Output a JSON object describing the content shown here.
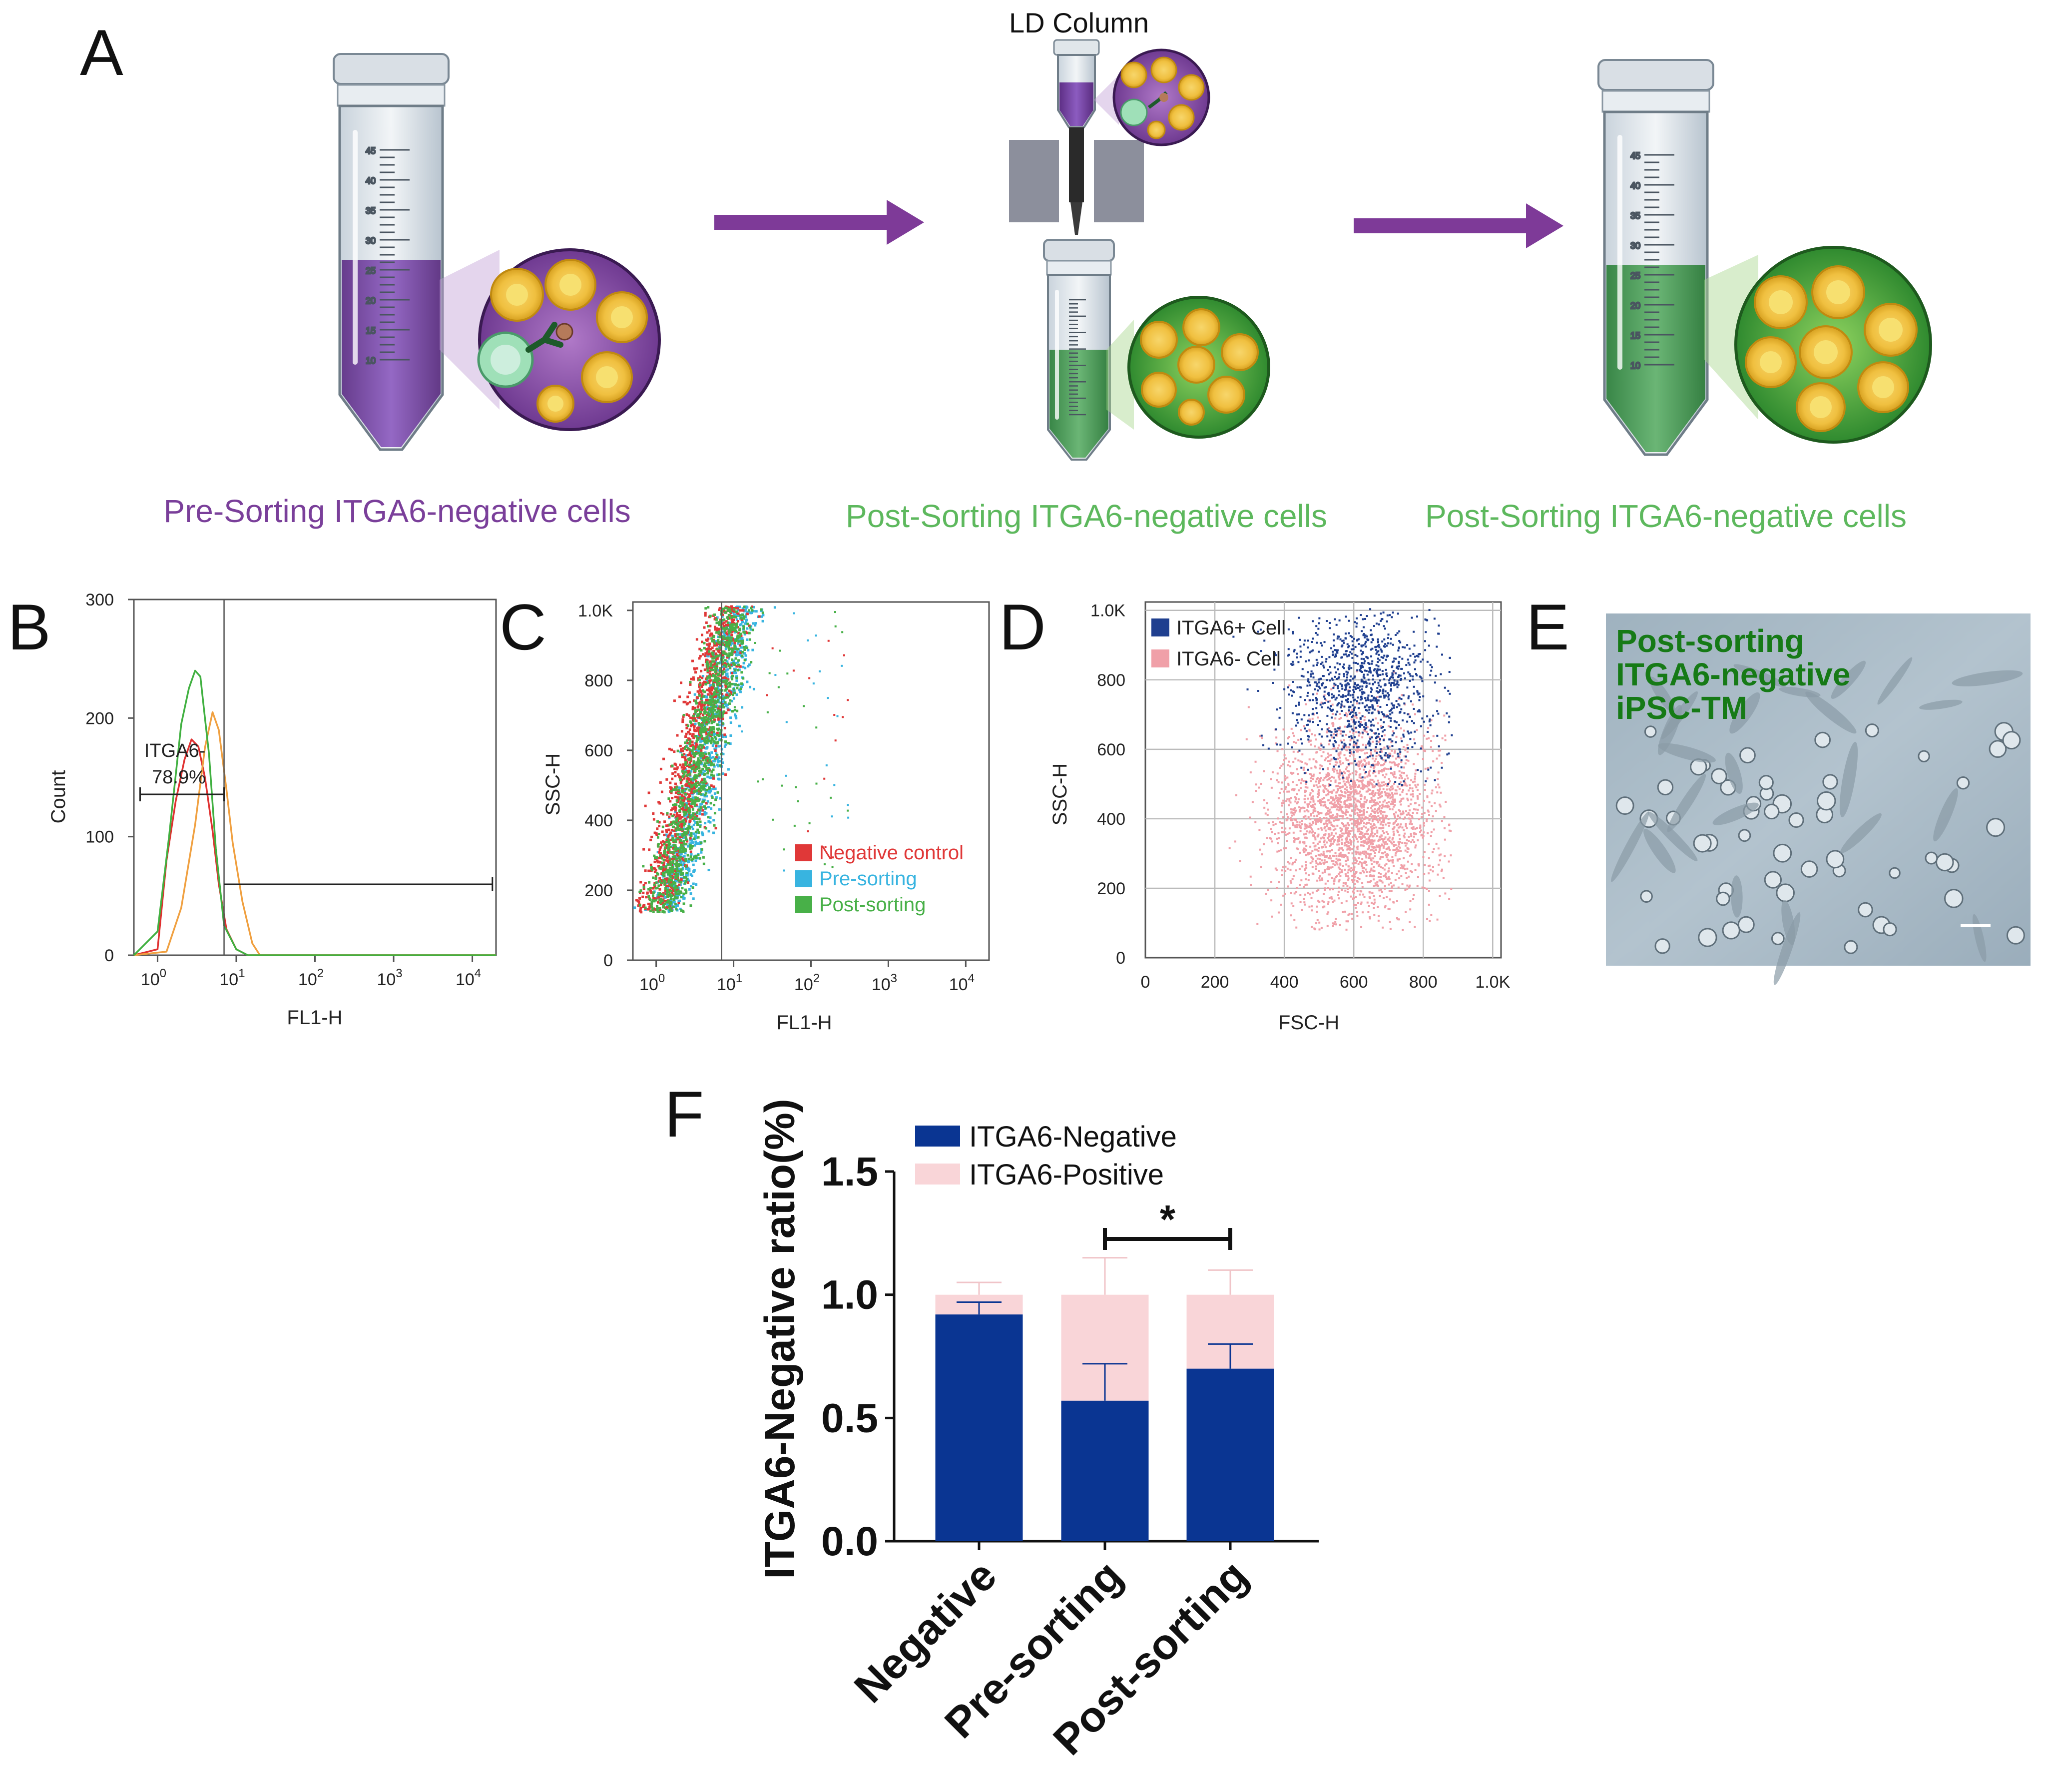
{
  "panels": {
    "a": {
      "letter": "A",
      "column_label": "LD Column",
      "captions": [
        "Pre-Sorting ITGA6-negative cells",
        "Post-Sorting ITGA6-negative cells",
        "Post-Sorting ITGA6-negative cells"
      ],
      "tube_marks": [
        "45",
        "40",
        "35",
        "30",
        "25",
        "20",
        "15",
        "10"
      ],
      "colors": {
        "pre": "#7a3f9a",
        "post": "#5db85d",
        "arrow": "#7e3a98"
      }
    },
    "b": {
      "letter": "B"
    },
    "c": {
      "letter": "C"
    },
    "d": {
      "letter": "D"
    },
    "e": {
      "letter": "E",
      "overlay_lines": [
        "Post-sorting",
        "ITGA6-negative",
        "iPSC-TM"
      ]
    },
    "f": {
      "letter": "F"
    }
  },
  "chart_data": [
    {
      "id": "B",
      "type": "line",
      "xlabel": "FL1-H",
      "ylabel": "Count",
      "xscale": "log",
      "xlim": [
        0.5,
        20000
      ],
      "ylim": [
        0,
        300
      ],
      "yticks": [
        "0",
        "100",
        "200",
        "300"
      ],
      "xticks": [
        {
          "base": "10",
          "exp": "0",
          "value": 1
        },
        {
          "base": "10",
          "exp": "1",
          "value": 10
        },
        {
          "base": "10",
          "exp": "2",
          "value": 100
        },
        {
          "base": "10",
          "exp": "3",
          "value": 1000
        },
        {
          "base": "10",
          "exp": "4",
          "value": 10000
        }
      ],
      "gate_label": "ITGA6-",
      "gate_value": "78.9%",
      "gate_range": [
        0.6,
        7
      ],
      "positive_gate_range": [
        7,
        18000
      ],
      "gate_line_x": 7,
      "series": [
        {
          "name": "Negative control",
          "color": "#e03030",
          "x": [
            0.5,
            1.0,
            1.3,
            1.7,
            2.2,
            2.7,
            3.3,
            4.0,
            5.0,
            6.0,
            7.5,
            10,
            14,
            20000
          ],
          "y": [
            0,
            5,
            80,
            130,
            165,
            182,
            176,
            150,
            105,
            60,
            22,
            5,
            0,
            0
          ]
        },
        {
          "name": "Pre-sorting",
          "color": "#f0a040",
          "x": [
            0.5,
            1.3,
            2.0,
            3.0,
            4.0,
            5.0,
            6.0,
            7.5,
            9,
            12,
            16,
            20,
            20000
          ],
          "y": [
            0,
            3,
            40,
            110,
            175,
            205,
            190,
            140,
            95,
            45,
            10,
            0,
            0
          ]
        },
        {
          "name": "Post-sorting",
          "color": "#40b040",
          "x": [
            0.5,
            1.0,
            1.4,
            2.0,
            2.5,
            3.0,
            3.5,
            4.0,
            4.5,
            5.5,
            7.0,
            10,
            14,
            20000
          ],
          "y": [
            0,
            20,
            100,
            195,
            225,
            240,
            235,
            200,
            170,
            90,
            25,
            5,
            0,
            0
          ]
        }
      ]
    },
    {
      "id": "C",
      "type": "scatter",
      "xlabel": "FL1-H",
      "ylabel": "SSC-H",
      "xscale": "log",
      "xlim": [
        0.5,
        20000
      ],
      "ylim": [
        0,
        1024
      ],
      "yticks": [
        "0",
        "200",
        "400",
        "600",
        "800",
        "1.0K"
      ],
      "xticks": [
        {
          "base": "10",
          "exp": "0",
          "value": 1
        },
        {
          "base": "10",
          "exp": "1",
          "value": 10
        },
        {
          "base": "10",
          "exp": "2",
          "value": 100
        },
        {
          "base": "10",
          "exp": "3",
          "value": 1000
        },
        {
          "base": "10",
          "exp": "4",
          "value": 10000
        }
      ],
      "gate_line_x": 7,
      "legend": [
        {
          "label": "Negative control",
          "color": "#e03838"
        },
        {
          "label": "Pre-sorting",
          "color": "#38b4e0"
        },
        {
          "label": "Post-sorting",
          "color": "#48b048"
        }
      ]
    },
    {
      "id": "D",
      "type": "scatter",
      "xlabel": "FSC-H",
      "ylabel": "SSC-H",
      "xlim": [
        0,
        1024
      ],
      "ylim": [
        0,
        1024
      ],
      "xticks": [
        "0",
        "200",
        "400",
        "600",
        "800",
        "1.0K"
      ],
      "yticks": [
        "0",
        "200",
        "400",
        "600",
        "800",
        "1.0K"
      ],
      "legend": [
        {
          "label": "ITGA6+  Cell",
          "color": "#1f3f8f"
        },
        {
          "label": "ITGA6-  Cell",
          "color": "#f0a0a8"
        }
      ]
    },
    {
      "id": "F",
      "type": "bar",
      "title": "",
      "ylabel": "ITGA6-Negative ratio(%)",
      "categories": [
        "Negative",
        "Pre-sorting",
        "Post-sorting"
      ],
      "ylim": [
        0,
        1.5
      ],
      "yticks": [
        "0.0",
        "0.5",
        "1.0",
        "1.5"
      ],
      "series": [
        {
          "name": "ITGA6-Negative",
          "color": "#0a3592",
          "values": [
            0.92,
            0.57,
            0.7
          ],
          "errors": [
            0.05,
            0.15,
            0.1
          ]
        },
        {
          "name": "ITGA6-Positive",
          "color": "#f9d5d8",
          "values": [
            0.08,
            0.43,
            0.3
          ],
          "errors": [
            0.05,
            0.15,
            0.1
          ]
        }
      ],
      "significance": {
        "label": "*",
        "between": [
          1,
          2
        ]
      }
    }
  ]
}
